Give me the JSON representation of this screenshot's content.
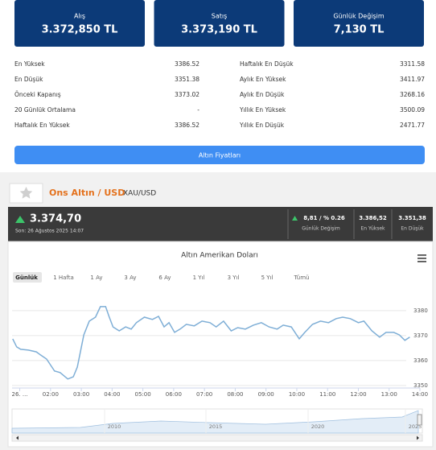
{
  "summary": [
    {
      "label": "Alış",
      "value": "3.372,850 TL"
    },
    {
      "label": "Satış",
      "value": "3.373,190 TL"
    },
    {
      "label": "Günlük Değişim",
      "value": "7,130 TL"
    }
  ],
  "stats": {
    "left": [
      [
        "En Yüksek",
        "3386.52"
      ],
      [
        "En Düşük",
        "3351.38"
      ],
      [
        "Önceki Kapanış",
        "3373.02"
      ],
      [
        "20 Günlük Ortalama",
        "-"
      ],
      [
        "Haftalık En Yüksek",
        "3386.52"
      ]
    ],
    "right": [
      [
        "Haftalık En Düşük",
        "3311.58"
      ],
      [
        "Aylık En Yüksek",
        "3411.97"
      ],
      [
        "Aylık En Düşük",
        "3268.16"
      ],
      [
        "Yıllık En Yüksek",
        "3500.09"
      ],
      [
        "Yıllık En Düşük",
        "2471.77"
      ]
    ]
  },
  "button": "Altın Fiyatları",
  "instrument": {
    "name": "Ons Altın / USD",
    "code": "XAU/USD"
  },
  "quote": {
    "price": "3.374,70",
    "time": "Son: 26 Ağustos 2025 14:07",
    "boxes": [
      {
        "value": "8,81 / % 0.26",
        "label": "Günlük Değişim"
      },
      {
        "value": "3.386,52",
        "label": "En Yüksek"
      },
      {
        "value": "3.351,38",
        "label": "En Düşük"
      }
    ]
  },
  "chart_data": {
    "type": "line",
    "title": "Altın Amerikan Doları",
    "ranges": [
      "Günlük",
      "1 Hafta",
      "1 Ay",
      "3 Ay",
      "6 Ay",
      "1 Yıl",
      "3 Yıl",
      "5 Yıl",
      "Tümü"
    ],
    "color": "#7eaed6",
    "x": [
      0.77,
      0.9,
      1.03,
      1.28,
      1.54,
      1.67,
      1.87,
      2.13,
      2.31,
      2.56,
      2.74,
      2.87,
      2.95,
      3.08,
      3.26,
      3.46,
      3.62,
      3.79,
      3.9,
      4.03,
      4.23,
      4.44,
      4.62,
      4.79,
      5.05,
      5.31,
      5.51,
      5.69,
      5.85,
      6.03,
      6.21,
      6.41,
      6.67,
      6.92,
      7.18,
      7.38,
      7.62,
      7.87,
      8.08,
      8.33,
      8.59,
      8.85,
      9.1,
      9.36,
      9.56,
      9.82,
      10.08,
      10.26,
      10.51,
      10.77,
      11.03,
      11.28,
      11.49,
      11.74,
      12.0,
      12.18,
      12.44,
      12.69,
      12.9,
      13.15,
      13.33,
      13.51,
      13.67
    ],
    "values": [
      3368.7,
      3365.5,
      3364.5,
      3364.2,
      3363.5,
      3362.3,
      3360.6,
      3355.8,
      3355.2,
      3352.6,
      3353.5,
      3357.4,
      3362.3,
      3370.3,
      3375.8,
      3377.4,
      3381.6,
      3381.6,
      3377.7,
      3373.5,
      3371.9,
      3373.5,
      3372.6,
      3375.2,
      3377.4,
      3376.5,
      3377.7,
      3373.5,
      3375.2,
      3371.3,
      3372.6,
      3374.5,
      3373.9,
      3375.8,
      3375.2,
      3373.5,
      3375.8,
      3371.9,
      3373.2,
      3372.6,
      3374.2,
      3375.2,
      3373.5,
      3372.6,
      3374.2,
      3373.5,
      3368.7,
      3371.3,
      3374.5,
      3375.8,
      3375.2,
      3376.8,
      3377.4,
      3376.8,
      3375.2,
      3375.8,
      3371.9,
      3369.4,
      3371.3,
      3371.3,
      3370.3,
      3368.1,
      3369.4
    ],
    "xlim": [
      0.75,
      14
    ],
    "xticks": [
      {
        "value": 1,
        "label": "26. ..."
      },
      {
        "value": 2,
        "label": "02:00"
      },
      {
        "value": 3,
        "label": "03:00"
      },
      {
        "value": 4,
        "label": "04:00"
      },
      {
        "value": 5,
        "label": "05:00"
      },
      {
        "value": 6,
        "label": "06:00"
      },
      {
        "value": 7,
        "label": "07:00"
      },
      {
        "value": 8,
        "label": "08:00"
      },
      {
        "value": 9,
        "label": "09:00"
      },
      {
        "value": 10,
        "label": "10:00"
      },
      {
        "value": 11,
        "label": "11:00"
      },
      {
        "value": 12,
        "label": "12:00"
      },
      {
        "value": 13,
        "label": "13:00"
      },
      {
        "value": 14,
        "label": "14:00"
      }
    ],
    "ylim": [
      3349,
      3389
    ],
    "yticks": [
      3350,
      3360,
      3370,
      3380
    ],
    "grid": true,
    "navigator_labels": [
      "2010",
      "2015",
      "2020",
      "2025"
    ]
  }
}
